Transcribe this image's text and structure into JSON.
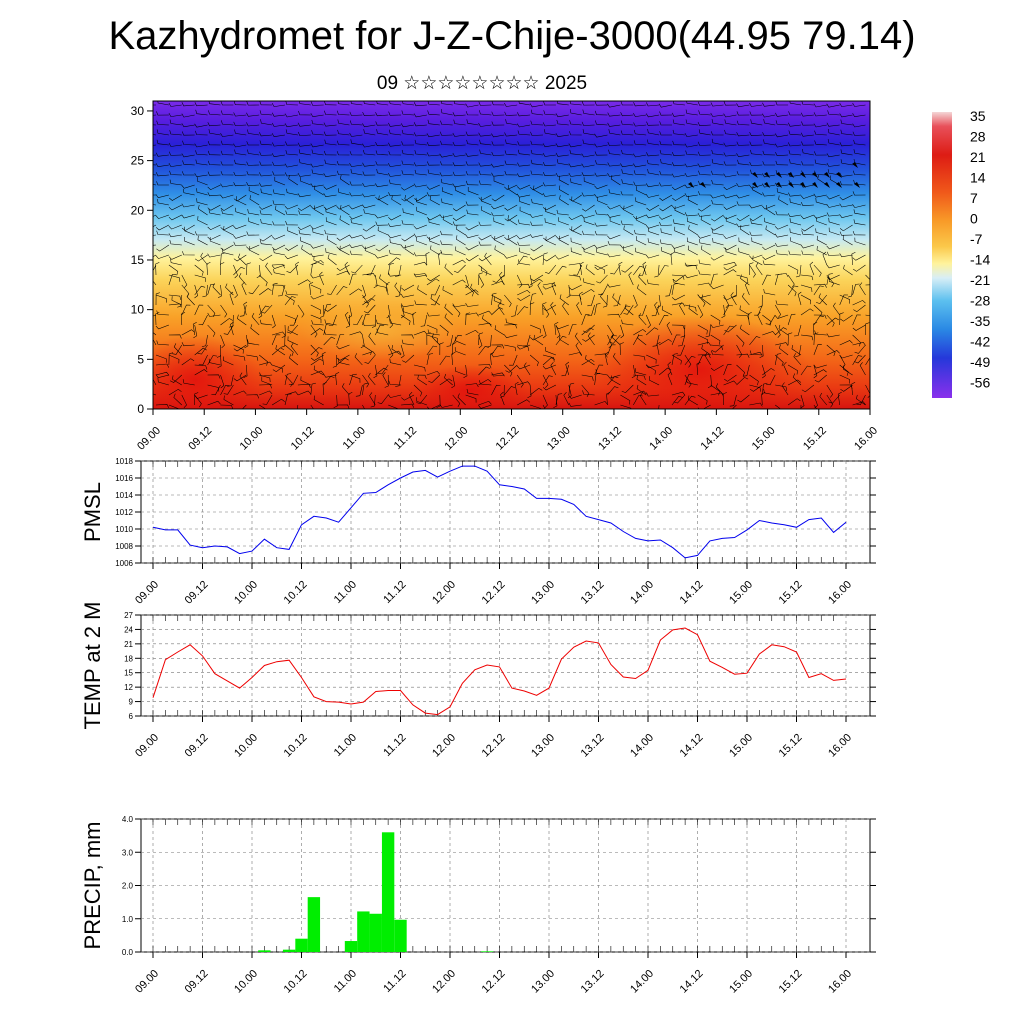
{
  "title": "Kazhydromet for J-Z-Chije-3000(44.95 79.14)",
  "subtitle": "09 ☆☆☆☆☆☆☆☆ 2025",
  "colors": {
    "pmsl": "#0000ee",
    "temp": "#ee0000",
    "precip": "#00ee00"
  },
  "chart_data": [
    {
      "type": "heatmap",
      "description_key": "vertical cross-section temperature with wind barbs",
      "x_ticks": [
        "09.00",
        "09.12",
        "10.00",
        "10.12",
        "11.00",
        "11.12",
        "12.00",
        "12.12",
        "13.00",
        "13.12",
        "14.00",
        "14.12",
        "15.00",
        "15.12",
        "16.00"
      ],
      "y_ticks": [
        0,
        5,
        10,
        15,
        20,
        25,
        30
      ],
      "ylim": [
        0,
        31
      ],
      "colorbar_labels": [
        "35",
        "28",
        "21",
        "14",
        "7",
        "0",
        "-7",
        "-14",
        "-21",
        "-28",
        "-35",
        "-42",
        "-49",
        "-56"
      ],
      "colorscale": "temperature, warm (red) near surface to cold (violet) aloft"
    },
    {
      "type": "line",
      "ylabel": "PMSL",
      "ylim": [
        1006,
        1018
      ],
      "y_ticks": [
        1006,
        1008,
        1010,
        1012,
        1014,
        1016,
        1018
      ],
      "x_ticks": [
        "09.00",
        "09.12",
        "10.00",
        "10.12",
        "11.00",
        "11.12",
        "12.00",
        "12.12",
        "13.00",
        "13.12",
        "14.00",
        "14.12",
        "15.00",
        "15.12",
        "16.00"
      ],
      "series": [
        {
          "values": [
            1010.2,
            1009.9,
            1009.9,
            1008.1,
            1007.8,
            1008.0,
            1007.9,
            1007.1,
            1007.4,
            1008.8,
            1007.8,
            1007.6,
            1010.5,
            1011.5,
            1011.3,
            1010.8,
            1012.5,
            1014.2,
            1014.3,
            1015.2,
            1016.0,
            1016.7,
            1016.9,
            1016.1,
            1016.8,
            1017.4,
            1017.4,
            1016.8,
            1015.2,
            1015.0,
            1014.7,
            1013.6,
            1013.6,
            1013.5,
            1012.9,
            1011.5,
            1011.1,
            1010.7,
            1009.7,
            1008.9,
            1008.6,
            1008.7,
            1007.8,
            1006.6,
            1006.9,
            1008.6,
            1008.9,
            1009.0,
            1009.9,
            1011.0,
            1010.7,
            1010.5,
            1010.2,
            1011.1,
            1011.3,
            1009.6,
            1010.8
          ]
        }
      ]
    },
    {
      "type": "line",
      "ylabel": "TEMP at 2 M",
      "ylim": [
        6,
        27
      ],
      "y_ticks": [
        6,
        9,
        12,
        15,
        18,
        21,
        24,
        27
      ],
      "x_ticks": [
        "09.00",
        "09.12",
        "10.00",
        "10.12",
        "11.00",
        "11.12",
        "12.00",
        "12.12",
        "13.00",
        "13.12",
        "14.00",
        "14.12",
        "15.00",
        "15.12",
        "16.00"
      ],
      "series": [
        {
          "values": [
            9.8,
            17.7,
            19.3,
            20.8,
            18.5,
            14.8,
            13.3,
            11.8,
            14.0,
            16.5,
            17.3,
            17.6,
            14.0,
            10.0,
            9.0,
            8.9,
            8.5,
            8.9,
            11.1,
            11.3,
            11.3,
            8.3,
            6.6,
            6.3,
            7.9,
            12.8,
            15.6,
            16.6,
            16.2,
            11.8,
            11.2,
            10.3,
            11.8,
            17.8,
            20.3,
            21.6,
            21.2,
            16.7,
            14.1,
            13.8,
            15.5,
            21.8,
            23.9,
            24.3,
            22.9,
            17.4,
            16.1,
            14.7,
            14.9,
            18.9,
            20.8,
            20.4,
            19.3,
            14.0,
            14.8,
            13.4,
            13.7
          ]
        }
      ]
    },
    {
      "type": "bar",
      "ylabel": "PRECIP, mm",
      "ylim": [
        0,
        4
      ],
      "y_ticks": [
        "0.0",
        "1.0",
        "2.0",
        "3.0",
        "4.0"
      ],
      "x_ticks": [
        "09.00",
        "09.12",
        "10.00",
        "10.12",
        "11.00",
        "11.12",
        "12.00",
        "12.12",
        "13.00",
        "13.12",
        "14.00",
        "14.12",
        "15.00",
        "15.12",
        "16.00"
      ],
      "series": [
        {
          "values": [
            0,
            0,
            0,
            0,
            0,
            0,
            0,
            0,
            0,
            0.05,
            0,
            0.07,
            0.4,
            1.65,
            0,
            0,
            0.33,
            1.22,
            1.15,
            3.6,
            0.97,
            0,
            0,
            0,
            0,
            0,
            0,
            0.02,
            0,
            0,
            0,
            0,
            0,
            0,
            0,
            0,
            0,
            0,
            0,
            0,
            0,
            0,
            0,
            0,
            0,
            0,
            0,
            0,
            0,
            0,
            0,
            0,
            0,
            0,
            0,
            0,
            0
          ]
        }
      ]
    }
  ]
}
